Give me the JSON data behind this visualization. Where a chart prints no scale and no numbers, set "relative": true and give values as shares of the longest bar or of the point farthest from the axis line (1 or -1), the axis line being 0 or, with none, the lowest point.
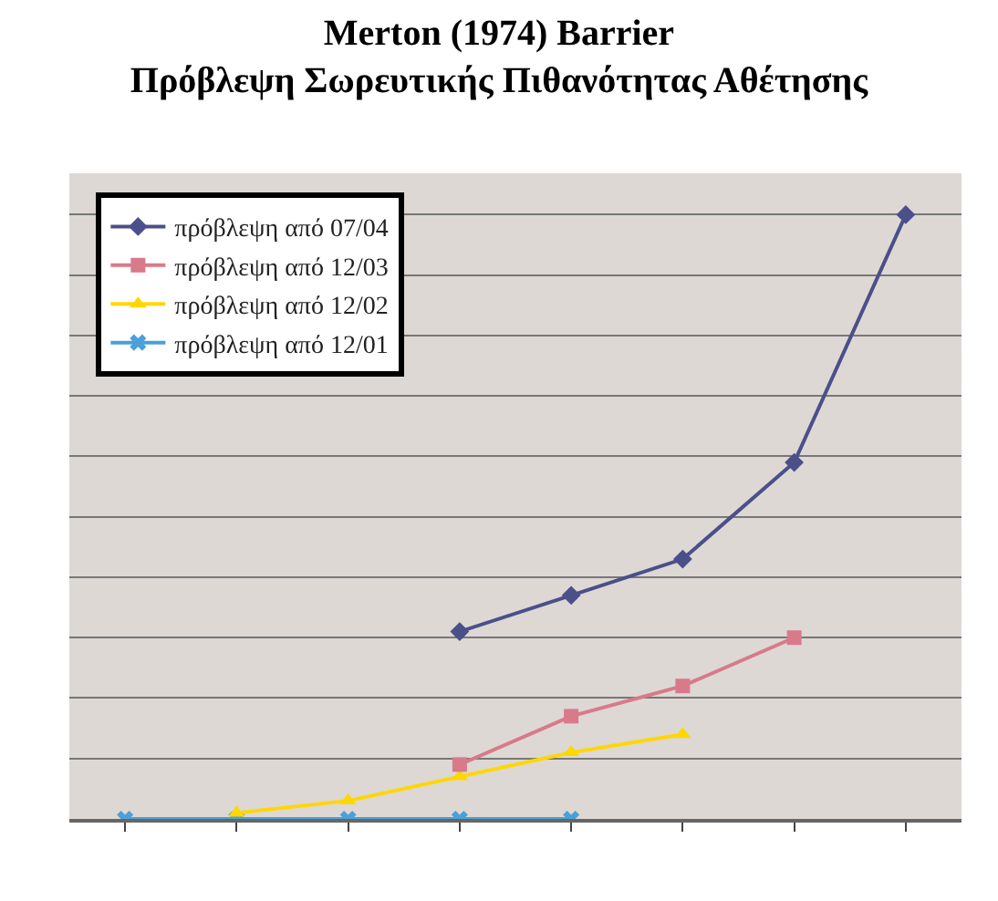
{
  "chart_data": {
    "type": "line",
    "title": "Merton (1974) Barrier\nΠρόβλεψη Σωρευτικής Πιθανότητας Αθέτησης",
    "relative": true,
    "categories": [
      null,
      null,
      null,
      null,
      null,
      null,
      null,
      null
    ],
    "series": [
      {
        "name": "πρόβλεψη από 07/04",
        "color": "#4b4f8a",
        "marker": "diamond",
        "values": [
          null,
          null,
          null,
          0.31,
          0.37,
          0.43,
          0.59,
          1
        ]
      },
      {
        "name": "πρόβλεψη από 12/03",
        "color": "#d87a8a",
        "marker": "square",
        "values": [
          null,
          null,
          null,
          0.09,
          0.17,
          0.22,
          0.3,
          null
        ]
      },
      {
        "name": "πρόβλεψη από 12/02",
        "color": "#ffd700",
        "marker": "triangle",
        "values": [
          null,
          0.01,
          0.03,
          0.07,
          0.11,
          0.14,
          null,
          null
        ]
      },
      {
        "name": "πρόβλεψη από 12/01",
        "color": "#4aa0d8",
        "marker": "cross",
        "values": [
          0,
          0,
          0,
          0,
          0,
          null,
          null,
          null
        ]
      }
    ],
    "grid": "y",
    "legend": "top left"
  }
}
